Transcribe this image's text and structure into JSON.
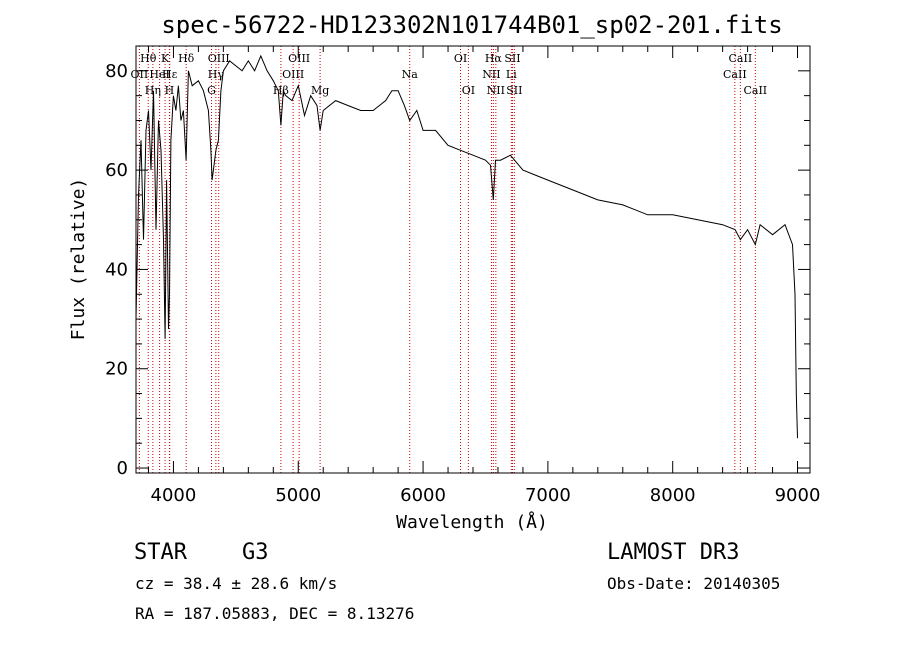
{
  "chart_data": {
    "type": "line",
    "title": "spec-56722-HD123302N101744B01_sp02-201.fits",
    "xlabel": "Wavelength (Å)",
    "ylabel": "Flux (relative)",
    "xlim": [
      3700,
      9100
    ],
    "ylim": [
      -1,
      85
    ],
    "xticks": [
      4000,
      5000,
      6000,
      7000,
      8000,
      9000
    ],
    "yticks": [
      0,
      20,
      40,
      60,
      80
    ],
    "series": [
      {
        "name": "flux",
        "x": [
          3700,
          3720,
          3740,
          3760,
          3780,
          3800,
          3820,
          3840,
          3860,
          3880,
          3900,
          3920,
          3933,
          3945,
          3960,
          3968,
          3980,
          4000,
          4020,
          4040,
          4060,
          4080,
          4101,
          4120,
          4150,
          4200,
          4240,
          4280,
          4300,
          4310,
          4320,
          4340,
          4360,
          4380,
          4400,
          4450,
          4500,
          4550,
          4600,
          4650,
          4700,
          4750,
          4800,
          4840,
          4861,
          4880,
          4900,
          4950,
          5000,
          5050,
          5100,
          5150,
          5175,
          5200,
          5300,
          5400,
          5500,
          5600,
          5700,
          5750,
          5800,
          5850,
          5893,
          5950,
          6000,
          6100,
          6200,
          6300,
          6400,
          6500,
          6540,
          6563,
          6580,
          6620,
          6700,
          6800,
          6900,
          7000,
          7200,
          7400,
          7600,
          7800,
          8000,
          8200,
          8400,
          8500,
          8542,
          8600,
          8662,
          8700,
          8800,
          8900,
          8960,
          8980,
          8990,
          9000
        ],
        "values": [
          30,
          55,
          66,
          46,
          68,
          72,
          60,
          76,
          48,
          70,
          64,
          46,
          26,
          58,
          28,
          35,
          66,
          75,
          72,
          77,
          70,
          72,
          62,
          80,
          77,
          78,
          76,
          72,
          64,
          58,
          60,
          64,
          66,
          76,
          80,
          82,
          81,
          80,
          82,
          80,
          83,
          80,
          78,
          76,
          69,
          76,
          75,
          74,
          77,
          71,
          75,
          73,
          68,
          72,
          74,
          73,
          72,
          72,
          74,
          76,
          76,
          73,
          70,
          72,
          68,
          68,
          65,
          64,
          63,
          62,
          61,
          54,
          62,
          62,
          63,
          60,
          59,
          58,
          56,
          54,
          53,
          51,
          51,
          50,
          49,
          48,
          46,
          48,
          45,
          49,
          47,
          49,
          45,
          35,
          15,
          6
        ]
      }
    ],
    "lines": [
      {
        "name": "OII",
        "wl": 3727,
        "row": 1
      },
      {
        "name": "Hθ",
        "wl": 3798,
        "row": 0
      },
      {
        "name": "Hη",
        "wl": 3835,
        "row": 2
      },
      {
        "name": "HeI",
        "wl": 3889,
        "row": 1
      },
      {
        "name": "K",
        "wl": 3933,
        "row": 0
      },
      {
        "name": "H",
        "wl": 3968,
        "row": 2
      },
      {
        "name": "Hε",
        "wl": 3970,
        "row": 1
      },
      {
        "name": "Hδ",
        "wl": 4102,
        "row": 0
      },
      {
        "name": "G",
        "wl": 4305,
        "row": 2
      },
      {
        "name": "Hγ",
        "wl": 4340,
        "row": 1
      },
      {
        "name": "OIII",
        "wl": 4363,
        "row": 0
      },
      {
        "name": "Hβ",
        "wl": 4861,
        "row": 2
      },
      {
        "name": "OIII",
        "wl": 4959,
        "row": 1
      },
      {
        "name": "OIII",
        "wl": 5007,
        "row": 0
      },
      {
        "name": "Mg",
        "wl": 5175,
        "row": 2
      },
      {
        "name": "Na",
        "wl": 5893,
        "row": 1
      },
      {
        "name": "OI",
        "wl": 6300,
        "row": 0
      },
      {
        "name": "OI",
        "wl": 6363,
        "row": 2
      },
      {
        "name": "NII",
        "wl": 6548,
        "row": 1
      },
      {
        "name": "Hα",
        "wl": 6563,
        "row": 0
      },
      {
        "name": "NII",
        "wl": 6583,
        "row": 2
      },
      {
        "name": "Li",
        "wl": 6707,
        "row": 1
      },
      {
        "name": "SII",
        "wl": 6716,
        "row": 0
      },
      {
        "name": "SII",
        "wl": 6731,
        "row": 2
      },
      {
        "name": "CaII",
        "wl": 8498,
        "row": 1
      },
      {
        "name": "CaII",
        "wl": 8542,
        "row": 0
      },
      {
        "name": "CaII",
        "wl": 8662,
        "row": 2
      }
    ]
  },
  "info": {
    "class": "STAR",
    "subclass": "G3",
    "survey": "LAMOST DR3",
    "cz": "cz = 38.4 ± 28.6 km/s",
    "obs_date": "Obs-Date: 20140305",
    "coords": "RA = 187.05883, DEC =   8.13276"
  }
}
